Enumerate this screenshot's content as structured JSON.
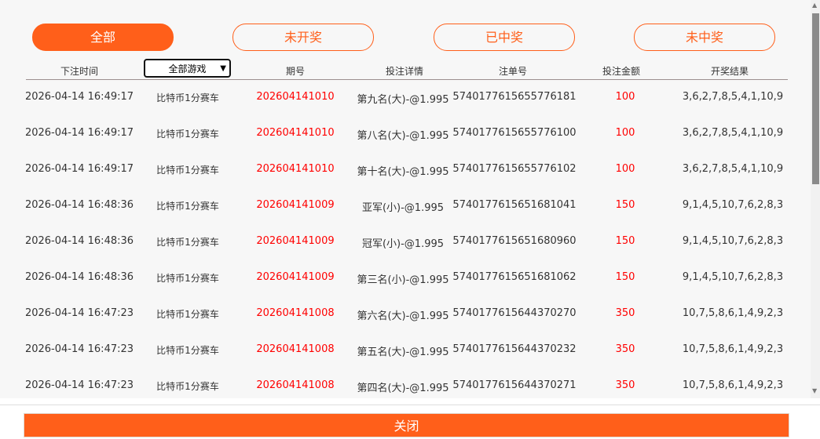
{
  "tabs": [
    {
      "label": "全部",
      "active": true
    },
    {
      "label": "未开奖"
    },
    {
      "label": "已中奖"
    },
    {
      "label": "未中奖"
    }
  ],
  "columns": [
    "下注时间",
    "期号",
    "投注详情",
    "注单号",
    "投注金额",
    "开奖结果"
  ],
  "game_filter": {
    "selected": "全部游戏"
  },
  "rows": [
    {
      "time": "2026-04-14 16:49:17",
      "game": "比特币1分赛车",
      "issue": "202604141010",
      "detail": "第九名(大)-@1.995",
      "order": "5740177615655776181",
      "amount": "100",
      "result": "3,6,2,7,8,5,4,1,10,9"
    },
    {
      "time": "2026-04-14 16:49:17",
      "game": "比特币1分赛车",
      "issue": "202604141010",
      "detail": "第八名(大)-@1.995",
      "order": "5740177615655776100",
      "amount": "100",
      "result": "3,6,2,7,8,5,4,1,10,9"
    },
    {
      "time": "2026-04-14 16:49:17",
      "game": "比特币1分赛车",
      "issue": "202604141010",
      "detail": "第十名(大)-@1.995",
      "order": "5740177615655776102",
      "amount": "100",
      "result": "3,6,2,7,8,5,4,1,10,9"
    },
    {
      "time": "2026-04-14 16:48:36",
      "game": "比特币1分赛车",
      "issue": "202604141009",
      "detail": "亚军(小)-@1.995",
      "order": "5740177615651681041",
      "amount": "150",
      "result": "9,1,4,5,10,7,6,2,8,3"
    },
    {
      "time": "2026-04-14 16:48:36",
      "game": "比特币1分赛车",
      "issue": "202604141009",
      "detail": "冠军(小)-@1.995",
      "order": "5740177615651680960",
      "amount": "150",
      "result": "9,1,4,5,10,7,6,2,8,3"
    },
    {
      "time": "2026-04-14 16:48:36",
      "game": "比特币1分赛车",
      "issue": "202604141009",
      "detail": "第三名(小)-@1.995",
      "order": "5740177615651681062",
      "amount": "150",
      "result": "9,1,4,5,10,7,6,2,8,3"
    },
    {
      "time": "2026-04-14 16:47:23",
      "game": "比特币1分赛车",
      "issue": "202604141008",
      "detail": "第六名(大)-@1.995",
      "order": "5740177615644370270",
      "amount": "350",
      "result": "10,7,5,8,6,1,4,9,2,3"
    },
    {
      "time": "2026-04-14 16:47:23",
      "game": "比特币1分赛车",
      "issue": "202604141008",
      "detail": "第五名(大)-@1.995",
      "order": "5740177615644370232",
      "amount": "350",
      "result": "10,7,5,8,6,1,4,9,2,3"
    },
    {
      "time": "2026-04-14 16:47:23",
      "game": "比特币1分赛车",
      "issue": "202604141008",
      "detail": "第四名(大)-@1.995",
      "order": "5740177615644370271",
      "amount": "350",
      "result": "10,7,5,8,6,1,4,9,2,3"
    }
  ],
  "close_label": "关闭",
  "colors": {
    "accent": "#ff5f1a",
    "highlight": "#ff0000"
  }
}
